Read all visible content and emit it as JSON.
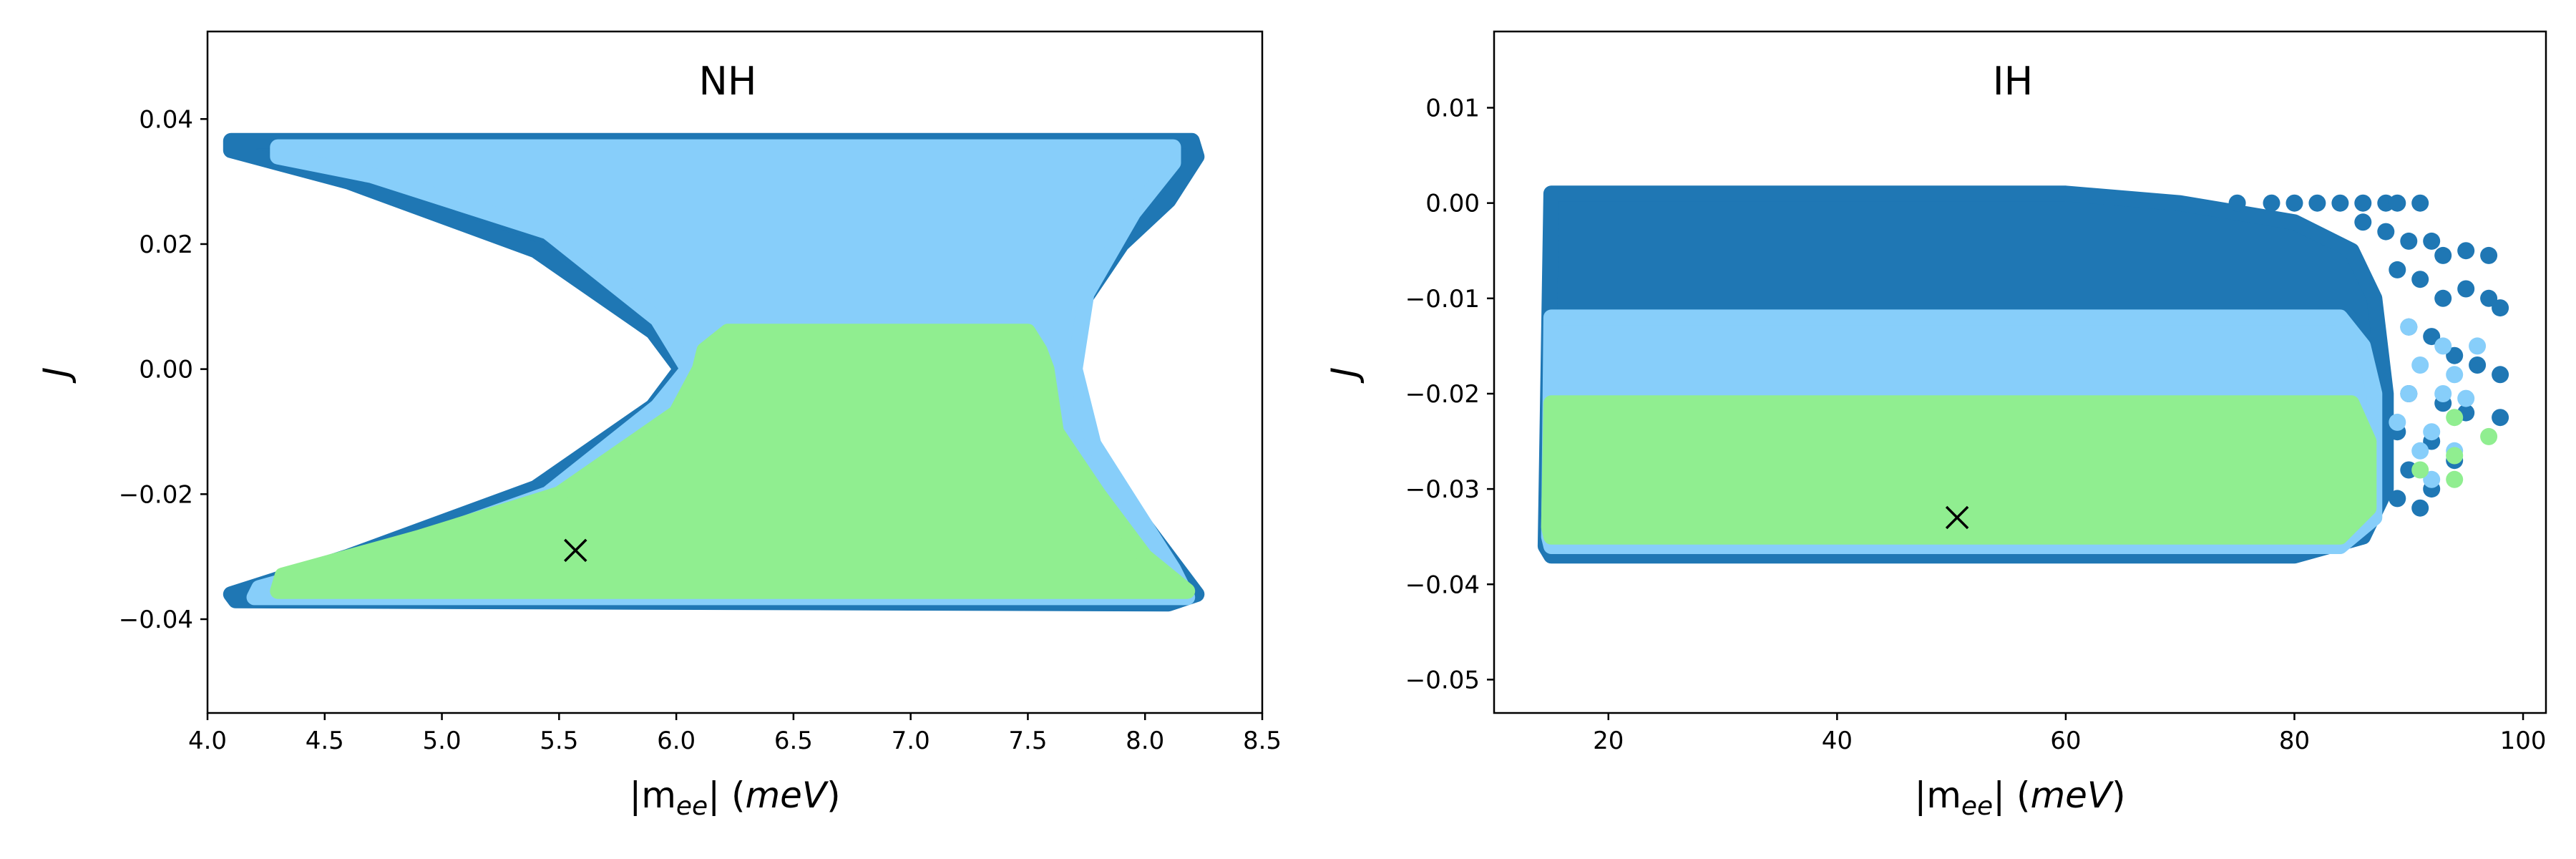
{
  "colors": {
    "outer": "#1f77b4",
    "middle": "#87cefa",
    "inner": "#90ee90",
    "marker": "#000000"
  },
  "chart_data": [
    {
      "type": "scatter",
      "title": "NH",
      "xlabel_base": "|m",
      "xlabel_sub": "ee",
      "xlabel_tail": "| (meV)",
      "ylabel": "J",
      "xlim": [
        4.0,
        8.5
      ],
      "ylim": [
        -0.055,
        0.054
      ],
      "xticks": [
        4.0,
        4.5,
        5.0,
        5.5,
        6.0,
        6.5,
        7.0,
        7.5,
        8.0,
        8.5
      ],
      "xtick_labels": [
        "4.0",
        "4.5",
        "5.0",
        "5.5",
        "6.0",
        "6.5",
        "7.0",
        "7.5",
        "8.0",
        "8.5"
      ],
      "yticks": [
        -0.04,
        -0.02,
        0.0,
        0.02,
        0.04
      ],
      "ytick_labels": [
        "−0.04",
        "−0.02",
        "0.00",
        "0.02",
        "0.04"
      ],
      "regions": [
        {
          "color_key": "outer",
          "polygon": [
            [
              4.1,
              0.0365
            ],
            [
              8.2,
              0.0365
            ],
            [
              8.22,
              0.034
            ],
            [
              8.1,
              0.027
            ],
            [
              7.9,
              0.02
            ],
            [
              7.72,
              0.01
            ],
            [
              7.66,
              0.0
            ],
            [
              7.72,
              -0.01
            ],
            [
              7.9,
              -0.02
            ],
            [
              8.1,
              -0.03
            ],
            [
              8.22,
              -0.036
            ],
            [
              8.1,
              -0.0375
            ],
            [
              4.12,
              -0.037
            ],
            [
              4.1,
              -0.036
            ],
            [
              4.6,
              -0.03
            ],
            [
              5.4,
              -0.019
            ],
            [
              5.9,
              -0.006
            ],
            [
              6.02,
              0.0
            ],
            [
              5.9,
              0.006
            ],
            [
              5.4,
              0.019
            ],
            [
              4.6,
              0.03
            ],
            [
              4.1,
              0.035
            ]
          ]
        },
        {
          "color_key": "middle",
          "polygon": [
            [
              4.3,
              0.0355
            ],
            [
              8.12,
              0.0355
            ],
            [
              8.12,
              0.033
            ],
            [
              7.95,
              0.025
            ],
            [
              7.75,
              0.012
            ],
            [
              7.7,
              0.0
            ],
            [
              7.78,
              -0.012
            ],
            [
              7.95,
              -0.022
            ],
            [
              8.12,
              -0.032
            ],
            [
              8.18,
              -0.0365
            ],
            [
              4.2,
              -0.0365
            ],
            [
              4.22,
              -0.035
            ],
            [
              4.7,
              -0.03
            ],
            [
              5.45,
              -0.02
            ],
            [
              5.92,
              -0.006
            ],
            [
              6.05,
              0.0
            ],
            [
              5.92,
              0.008
            ],
            [
              5.45,
              0.022
            ],
            [
              4.7,
              0.031
            ],
            [
              4.3,
              0.034
            ]
          ]
        },
        {
          "color_key": "inner",
          "polygon": [
            [
              6.12,
              0.003
            ],
            [
              6.22,
              0.006
            ],
            [
              7.5,
              0.006
            ],
            [
              7.55,
              0.003
            ],
            [
              7.58,
              0.0
            ],
            [
              7.62,
              -0.01
            ],
            [
              7.8,
              -0.02
            ],
            [
              8.0,
              -0.03
            ],
            [
              8.18,
              -0.0355
            ],
            [
              4.3,
              -0.0355
            ],
            [
              4.32,
              -0.033
            ],
            [
              4.9,
              -0.027
            ],
            [
              5.5,
              -0.02
            ],
            [
              6.0,
              -0.007
            ],
            [
              6.1,
              0.0
            ]
          ]
        }
      ],
      "marker": {
        "x": 5.57,
        "y": -0.029,
        "symbol": "x"
      }
    },
    {
      "type": "scatter",
      "title": "IH",
      "xlabel_base": "|m",
      "xlabel_sub": "ee",
      "xlabel_tail": "| (meV)",
      "ylabel": "J",
      "xlim": [
        10,
        102
      ],
      "ylim": [
        -0.0535,
        0.018
      ],
      "xticks": [
        20,
        40,
        60,
        80,
        100
      ],
      "xtick_labels": [
        "20",
        "40",
        "60",
        "80",
        "100"
      ],
      "yticks": [
        -0.05,
        -0.04,
        -0.03,
        -0.02,
        -0.01,
        0.0,
        0.01
      ],
      "ytick_labels": [
        "−0.05",
        "−0.04",
        "−0.03",
        "−0.02",
        "−0.01",
        "0.00",
        "0.01"
      ],
      "regions": [
        {
          "color_key": "outer",
          "polygon": [
            [
              15,
              0.001
            ],
            [
              60,
              0.001
            ],
            [
              70,
              0.0
            ],
            [
              80,
              -0.002
            ],
            [
              85,
              -0.005
            ],
            [
              87,
              -0.01
            ],
            [
              88,
              -0.02
            ],
            [
              88,
              -0.03
            ],
            [
              86,
              -0.035
            ],
            [
              80,
              -0.037
            ],
            [
              15,
              -0.037
            ],
            [
              14.5,
              -0.036
            ]
          ]
        },
        {
          "color_key": "middle",
          "polygon": [
            [
              15,
              -0.012
            ],
            [
              84,
              -0.012
            ],
            [
              86,
              -0.015
            ],
            [
              87,
              -0.02
            ],
            [
              87,
              -0.033
            ],
            [
              84,
              -0.036
            ],
            [
              15,
              -0.036
            ],
            [
              14.8,
              -0.035
            ]
          ]
        },
        {
          "color_key": "inner",
          "polygon": [
            [
              15,
              -0.021
            ],
            [
              85,
              -0.021
            ],
            [
              86.5,
              -0.025
            ],
            [
              86.5,
              -0.032
            ],
            [
              84,
              -0.035
            ],
            [
              15,
              -0.035
            ],
            [
              14.8,
              -0.034
            ]
          ]
        }
      ],
      "points": [
        {
          "color_key": "outer",
          "xy": [
            [
              75,
              0.0
            ],
            [
              78,
              0.0
            ],
            [
              80,
              0.0
            ],
            [
              82,
              0.0
            ],
            [
              84,
              0.0
            ],
            [
              86,
              0.0
            ],
            [
              88,
              0.0
            ],
            [
              89,
              0.0
            ],
            [
              91,
              0.0
            ],
            [
              86,
              -0.002
            ],
            [
              88,
              -0.003
            ],
            [
              90,
              -0.004
            ],
            [
              92,
              -0.004
            ],
            [
              93,
              -0.0055
            ],
            [
              95,
              -0.005
            ],
            [
              97,
              -0.0055
            ],
            [
              89,
              -0.007
            ],
            [
              91,
              -0.008
            ],
            [
              93,
              -0.01
            ],
            [
              95,
              -0.009
            ],
            [
              97,
              -0.01
            ],
            [
              98,
              -0.011
            ],
            [
              90,
              -0.013
            ],
            [
              92,
              -0.014
            ],
            [
              94,
              -0.016
            ],
            [
              96,
              -0.017
            ],
            [
              98,
              -0.018
            ],
            [
              90,
              -0.02
            ],
            [
              93,
              -0.021
            ],
            [
              95,
              -0.022
            ],
            [
              98,
              -0.0225
            ],
            [
              89,
              -0.024
            ],
            [
              92,
              -0.025
            ],
            [
              94,
              -0.027
            ],
            [
              90,
              -0.028
            ],
            [
              92,
              -0.03
            ],
            [
              89,
              -0.031
            ],
            [
              91,
              -0.032
            ]
          ]
        },
        {
          "color_key": "middle",
          "xy": [
            [
              90,
              -0.013
            ],
            [
              93,
              -0.015
            ],
            [
              91,
              -0.017
            ],
            [
              94,
              -0.018
            ],
            [
              96,
              -0.015
            ],
            [
              90,
              -0.02
            ],
            [
              93,
              -0.02
            ],
            [
              95,
              -0.0205
            ],
            [
              89,
              -0.023
            ],
            [
              92,
              -0.024
            ],
            [
              91,
              -0.026
            ],
            [
              94,
              -0.026
            ],
            [
              92,
              -0.029
            ]
          ]
        },
        {
          "color_key": "inner",
          "xy": [
            [
              94,
              -0.0225
            ],
            [
              97,
              -0.0245
            ],
            [
              94,
              -0.0265
            ],
            [
              94,
              -0.029
            ],
            [
              91,
              -0.028
            ]
          ]
        }
      ],
      "marker": {
        "x": 50.5,
        "y": -0.033,
        "symbol": "x"
      }
    }
  ]
}
